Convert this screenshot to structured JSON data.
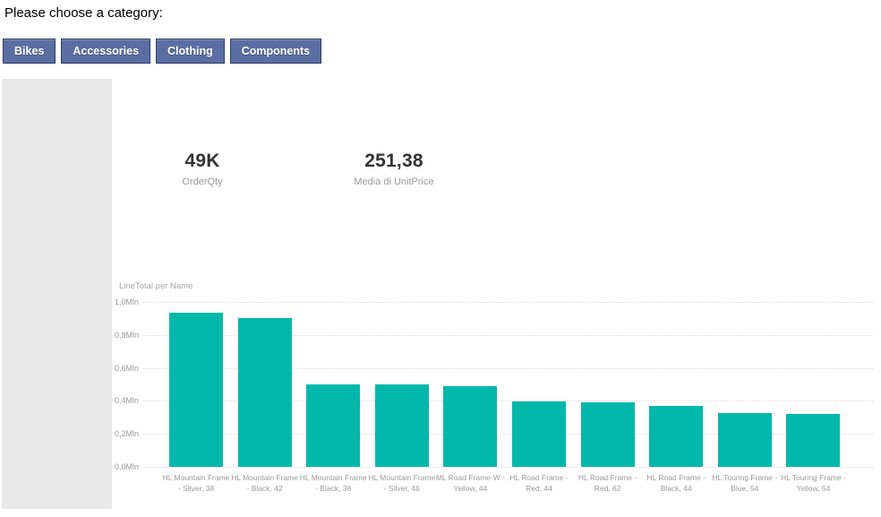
{
  "header": {
    "title": "Please choose a category:",
    "buttons": [
      {
        "label": "Bikes"
      },
      {
        "label": "Accessories"
      },
      {
        "label": "Clothing"
      },
      {
        "label": "Components"
      }
    ]
  },
  "kpis": [
    {
      "value": "49K",
      "label": "OrderQty"
    },
    {
      "value": "251,38",
      "label": "Media di UnitPrice"
    }
  ],
  "chart_data": {
    "type": "bar",
    "title": "LineTotal per Name",
    "categories": [
      "HL Mountain Frame - Silver, 38",
      "HL Mountain Frame - Black, 42",
      "HL Mountain Frame - Black, 38",
      "HL Mountain Frame - Silver, 46",
      "ML Road Frame-W - Yellow, 44",
      "HL Road Frame - Red, 44",
      "HL Road Frame - Red, 62",
      "HL Road Frame - Black, 44",
      "HL Touring Frame - Blue, 54",
      "HL Touring Frame - Yellow, 54"
    ],
    "category_lines": [
      [
        "HL Mountain Frame",
        "- Silver, 38"
      ],
      [
        "HL Mountain Frame",
        "- Black, 42"
      ],
      [
        "HL Mountain Frame",
        "- Black, 38"
      ],
      [
        "HL Mountain Frame",
        "- Silver, 46"
      ],
      [
        "ML Road Frame-W -",
        "Yellow, 44"
      ],
      [
        "HL Road Frame -",
        "Red, 44"
      ],
      [
        "HL Road Frame -",
        "Red, 62"
      ],
      [
        "HL Road Frame -",
        "Black, 44"
      ],
      [
        "HL Touring Frame -",
        "Blue, 54"
      ],
      [
        "HL Touring Frame -",
        "Yellow, 54"
      ]
    ],
    "values": [
      0.933,
      0.9,
      0.502,
      0.499,
      0.487,
      0.398,
      0.393,
      0.371,
      0.325,
      0.321
    ],
    "value_unit": "Mln",
    "xlabel": "",
    "ylabel": "",
    "ylim": [
      0,
      1.0
    ],
    "ytick_labels": [
      "1,0Mln",
      "0,8Mln",
      "0,6Mln",
      "0,4Mln",
      "0,2Mln",
      "0,0Mln"
    ],
    "grid": "horizontal-dotted",
    "legend": "none"
  },
  "colors": {
    "button_bg": "#5B6EA3",
    "button_border": "#2F3E68",
    "bar": "#01B8AA",
    "kpi_value": "#333333",
    "muted_label": "#9B9B9B",
    "panel_bg": "#E9E9E9"
  }
}
